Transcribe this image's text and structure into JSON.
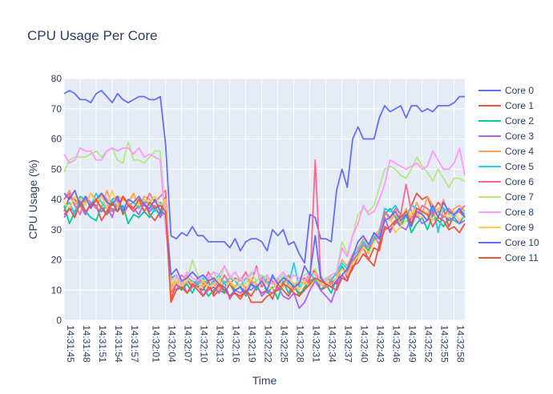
{
  "chart_data": {
    "type": "line",
    "title": "CPU Usage Per Core",
    "xlabel": "Time",
    "ylabel": "CPU Usage (%)",
    "ylim": [
      0,
      80
    ],
    "y_ticks": [
      0,
      10,
      20,
      30,
      40,
      50,
      60,
      70,
      80
    ],
    "grid": true,
    "legend_position": "right",
    "plot_background": "#E5ECF6",
    "x": [
      "14:31:45",
      "14:31:46",
      "14:31:47",
      "14:31:48",
      "14:31:49",
      "14:31:50",
      "14:31:51",
      "14:31:52",
      "14:31:53",
      "14:31:54",
      "14:31:55",
      "14:31:56",
      "14:31:57",
      "14:31:58",
      "14:31:59",
      "14:32:00",
      "14:32:01",
      "14:32:02",
      "14:32:03",
      "14:32:04",
      "14:32:05",
      "14:32:06",
      "14:32:07",
      "14:32:08",
      "14:32:09",
      "14:32:10",
      "14:32:11",
      "14:32:12",
      "14:32:13",
      "14:32:14",
      "14:32:15",
      "14:32:16",
      "14:32:17",
      "14:32:18",
      "14:32:19",
      "14:32:20",
      "14:32:21",
      "14:32:22",
      "14:32:23",
      "14:32:24",
      "14:32:25",
      "14:32:26",
      "14:32:27",
      "14:32:28",
      "14:32:29",
      "14:32:30",
      "14:32:31",
      "14:32:32",
      "14:32:33",
      "14:32:34",
      "14:32:35",
      "14:32:36",
      "14:32:37",
      "14:32:38",
      "14:32:39",
      "14:32:40",
      "14:32:41",
      "14:32:42",
      "14:32:43",
      "14:32:44",
      "14:32:45",
      "14:32:46",
      "14:32:47",
      "14:32:48",
      "14:32:49",
      "14:32:50",
      "14:32:51",
      "14:32:52",
      "14:32:53",
      "14:32:54",
      "14:32:55",
      "14:32:56",
      "14:32:57",
      "14:32:58",
      "14:32:59",
      "14:33:00"
    ],
    "x_ticks": [
      "14:31:45",
      "14:31:48",
      "14:31:51",
      "14:31:54",
      "14:31:57",
      "14:32:01",
      "14:32:04",
      "14:32:07",
      "14:32:10",
      "14:32:13",
      "14:32:16",
      "14:32:19",
      "14:32:22",
      "14:32:25",
      "14:32:28",
      "14:32:31",
      "14:32:34",
      "14:32:37",
      "14:32:40",
      "14:32:43",
      "14:32:46",
      "14:32:49",
      "14:32:52",
      "14:32:55",
      "14:32:58"
    ],
    "series": [
      {
        "name": "Core 0",
        "color": "#636EFA",
        "values": [
          75,
          76,
          75,
          73,
          73,
          72,
          75,
          76,
          74,
          72,
          75,
          73,
          72,
          73,
          74,
          74,
          73,
          73,
          74,
          58,
          28,
          27,
          29,
          28,
          31,
          28,
          28,
          26,
          26,
          26,
          26,
          24,
          27,
          23,
          26,
          27,
          27,
          26,
          23,
          30,
          28,
          30,
          25,
          26,
          22,
          19,
          35,
          34,
          27,
          27,
          26,
          43,
          50,
          44,
          60,
          64,
          60,
          60,
          60,
          67,
          71,
          69,
          70,
          71,
          67,
          71,
          71,
          69,
          70,
          69,
          71,
          71,
          71,
          72,
          74,
          74
        ]
      },
      {
        "name": "Core 1",
        "color": "#EF553B",
        "values": [
          36,
          41,
          40,
          38,
          35,
          39,
          38,
          33,
          36,
          40,
          41,
          35,
          38,
          36,
          38,
          39,
          35,
          33,
          36,
          41,
          7,
          12,
          10,
          13,
          12,
          11,
          10,
          13,
          8,
          10,
          9,
          12,
          9,
          8,
          10,
          8,
          11,
          9,
          10,
          7,
          12,
          10,
          8,
          11,
          9,
          10,
          14,
          17,
          10,
          11,
          13,
          12,
          18,
          14,
          17,
          21,
          24,
          20,
          24,
          23,
          31,
          30,
          32,
          35,
          34,
          38,
          42,
          40,
          41,
          36,
          39,
          37,
          31,
          35,
          36,
          34
        ]
      },
      {
        "name": "Core 2",
        "color": "#00CC96",
        "values": [
          38,
          32,
          36,
          40,
          36,
          34,
          33,
          38,
          35,
          37,
          36,
          38,
          32,
          35,
          34,
          36,
          34,
          37,
          35,
          39,
          14,
          15,
          10,
          12,
          9,
          13,
          11,
          8,
          10,
          12,
          9,
          13,
          10,
          11,
          8,
          12,
          10,
          14,
          9,
          11,
          7,
          13,
          9,
          12,
          8,
          11,
          13,
          14,
          10,
          12,
          9,
          14,
          18,
          15,
          19,
          22,
          25,
          23,
          27,
          29,
          35,
          37,
          34,
          31,
          35,
          29,
          32,
          34,
          30,
          35,
          33,
          31,
          34,
          33,
          32,
          35
        ]
      },
      {
        "name": "Core 3",
        "color": "#AB63FA",
        "values": [
          34,
          37,
          36,
          38,
          35,
          39,
          37,
          36,
          38,
          34,
          40,
          36,
          38,
          37,
          35,
          39,
          36,
          38,
          34,
          37,
          12,
          10,
          13,
          9,
          11,
          12,
          8,
          10,
          11,
          9,
          13,
          7,
          10,
          9,
          11,
          10,
          12,
          8,
          10,
          9,
          11,
          8,
          7,
          9,
          4,
          6,
          10,
          13,
          10,
          8,
          6,
          11,
          15,
          13,
          20,
          22,
          26,
          24,
          28,
          25,
          34,
          29,
          33,
          31,
          30,
          34,
          35,
          32,
          33,
          36,
          30,
          35,
          33,
          34,
          32,
          33
        ]
      },
      {
        "name": "Core 4",
        "color": "#FFA15A",
        "values": [
          40,
          43,
          38,
          41,
          39,
          42,
          40,
          37,
          43,
          38,
          41,
          40,
          39,
          42,
          38,
          41,
          40,
          37,
          39,
          38,
          11,
          14,
          12,
          15,
          12,
          13,
          11,
          14,
          12,
          10,
          13,
          12,
          11,
          14,
          10,
          13,
          12,
          11,
          13,
          12,
          14,
          11,
          12,
          10,
          13,
          12,
          15,
          16,
          12,
          11,
          14,
          15,
          20,
          18,
          22,
          24,
          27,
          25,
          28,
          30,
          36,
          33,
          35,
          32,
          37,
          34,
          39,
          35,
          41,
          38,
          36,
          40,
          35,
          37,
          38,
          36
        ]
      },
      {
        "name": "Core 5",
        "color": "#19D3F3",
        "values": [
          37,
          39,
          35,
          41,
          40,
          38,
          42,
          39,
          37,
          40,
          36,
          41,
          38,
          39,
          37,
          40,
          38,
          36,
          39,
          37,
          13,
          15,
          11,
          14,
          13,
          12,
          14,
          11,
          13,
          15,
          12,
          14,
          13,
          11,
          14,
          12,
          13,
          15,
          12,
          14,
          13,
          15,
          12,
          19,
          11,
          13,
          16,
          13,
          12,
          14,
          13,
          16,
          19,
          17,
          21,
          23,
          26,
          24,
          27,
          29,
          37,
          36,
          38,
          35,
          34,
          38,
          37,
          36,
          35,
          38,
          29,
          37,
          36,
          34,
          37,
          35
        ]
      },
      {
        "name": "Core 6",
        "color": "#FF6692",
        "values": [
          40,
          42,
          38,
          35,
          41,
          39,
          37,
          42,
          40,
          36,
          38,
          41,
          39,
          37,
          40,
          38,
          42,
          39,
          41,
          43,
          9,
          12,
          15,
          13,
          11,
          14,
          12,
          16,
          13,
          11,
          15,
          12,
          14,
          13,
          16,
          12,
          18,
          11,
          14,
          13,
          10,
          12,
          15,
          11,
          13,
          14,
          12,
          53,
          15,
          11,
          12,
          14,
          17,
          16,
          20,
          22,
          25,
          24,
          26,
          28,
          36,
          34,
          37,
          35,
          45,
          36,
          34,
          38,
          37,
          35,
          36,
          34,
          37,
          35,
          36,
          38
        ]
      },
      {
        "name": "Core 7",
        "color": "#B6E880",
        "values": [
          49,
          53,
          54,
          54,
          54,
          55,
          56,
          54,
          56,
          57,
          53,
          52,
          59,
          53,
          53,
          52,
          54,
          56,
          56,
          32,
          12,
          14,
          11,
          13,
          20,
          15,
          13,
          14,
          16,
          12,
          18,
          15,
          13,
          14,
          12,
          16,
          13,
          15,
          14,
          12,
          13,
          15,
          14,
          12,
          13,
          15,
          16,
          17,
          13,
          14,
          15,
          16,
          26,
          22,
          28,
          35,
          37,
          36,
          38,
          44,
          50,
          51,
          50,
          48,
          47,
          50,
          54,
          51,
          49,
          46,
          50,
          47,
          44,
          47,
          47,
          46
        ]
      },
      {
        "name": "Core 8",
        "color": "#FF97FF",
        "values": [
          55,
          52,
          53,
          57,
          56,
          56,
          53,
          53,
          56,
          57,
          56,
          57,
          57,
          55,
          57,
          54,
          55,
          54,
          53,
          30,
          13,
          15,
          12,
          16,
          14,
          13,
          15,
          14,
          16,
          15,
          18,
          14,
          16,
          13,
          14,
          15,
          17,
          13,
          15,
          12,
          14,
          16,
          13,
          15,
          14,
          13,
          16,
          15,
          14,
          13,
          15,
          16,
          24,
          21,
          28,
          32,
          38,
          35,
          36,
          40,
          45,
          53,
          52,
          51,
          50,
          51,
          52,
          50,
          51,
          56,
          53,
          50,
          50,
          52,
          57,
          48
        ]
      },
      {
        "name": "Core 9",
        "color": "#FECB52",
        "values": [
          39,
          37,
          41,
          40,
          38,
          42,
          39,
          41,
          37,
          43,
          38,
          40,
          39,
          41,
          38,
          40,
          39,
          41,
          38,
          40,
          10,
          13,
          11,
          14,
          12,
          10,
          13,
          11,
          12,
          14,
          10,
          13,
          11,
          12,
          10,
          14,
          11,
          13,
          12,
          10,
          13,
          11,
          14,
          12,
          10,
          13,
          11,
          14,
          12,
          13,
          11,
          14,
          17,
          15,
          19,
          21,
          24,
          22,
          26,
          27,
          33,
          34,
          29,
          31,
          33,
          36,
          35,
          34,
          36,
          33,
          37,
          35,
          34,
          36,
          33,
          35
        ]
      },
      {
        "name": "Core 10",
        "color": "#636EFA",
        "values": [
          42,
          40,
          43,
          38,
          41,
          37,
          40,
          42,
          39,
          38,
          41,
          36,
          40,
          39,
          41,
          38,
          37,
          40,
          36,
          35,
          15,
          17,
          13,
          14,
          16,
          14,
          15,
          13,
          14,
          12,
          11,
          8,
          10,
          11,
          9,
          12,
          11,
          13,
          10,
          15,
          12,
          14,
          13,
          11,
          12,
          18,
          15,
          28,
          14,
          12,
          11,
          13,
          15,
          17,
          21,
          26,
          28,
          25,
          29,
          27,
          33,
          34,
          36,
          33,
          35,
          31,
          36,
          35,
          33,
          38,
          34,
          39,
          36,
          35,
          37,
          34
        ]
      },
      {
        "name": "Core 11",
        "color": "#EF553B",
        "values": [
          35,
          37,
          34,
          39,
          36,
          38,
          40,
          37,
          35,
          39,
          36,
          41,
          38,
          37,
          40,
          36,
          39,
          37,
          38,
          36,
          6,
          10,
          11,
          9,
          12,
          10,
          8,
          11,
          9,
          12,
          10,
          8,
          9,
          7,
          10,
          6,
          6,
          6,
          8,
          9,
          10,
          12,
          11,
          9,
          8,
          10,
          12,
          14,
          13,
          12,
          11,
          10,
          14,
          13,
          18,
          19,
          22,
          20,
          18,
          25,
          30,
          31,
          33,
          34,
          36,
          32,
          37,
          36,
          35,
          31,
          34,
          33,
          30,
          31,
          29,
          32
        ]
      }
    ]
  }
}
